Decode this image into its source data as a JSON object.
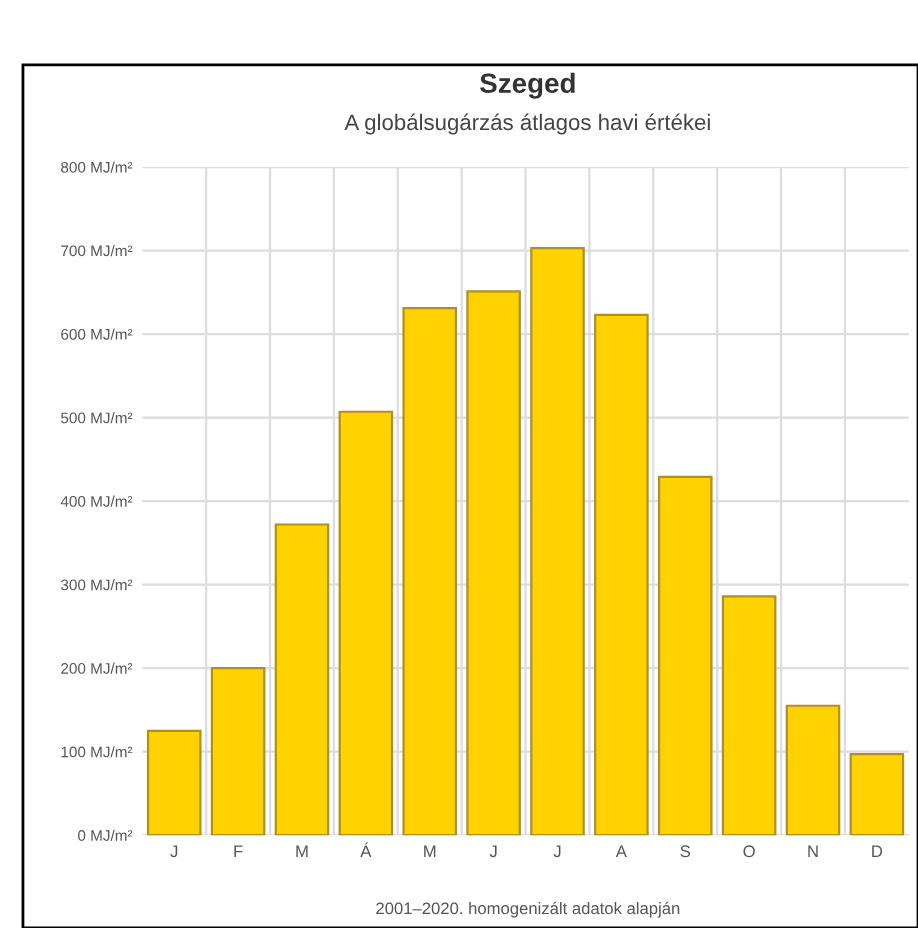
{
  "chart_data": {
    "type": "bar",
    "title": "Szeged",
    "subtitle": "A globálsugárzás átlagos havi értékei",
    "categories": [
      "J",
      "F",
      "M",
      "Á",
      "M",
      "J",
      "J",
      "A",
      "S",
      "O",
      "N",
      "D"
    ],
    "values": [
      125,
      200,
      372,
      507,
      631,
      651,
      703,
      623,
      429,
      286,
      155,
      97
    ],
    "color": "#ffd200",
    "ylim": [
      0,
      800
    ],
    "yticks": [
      {
        "value": 0,
        "label": "0 MJ/m²"
      },
      {
        "value": 100,
        "label": "100 MJ/m²"
      },
      {
        "value": 200,
        "label": "200 MJ/m²"
      },
      {
        "value": 300,
        "label": "300 MJ/m²"
      },
      {
        "value": 400,
        "label": "400 MJ/m²"
      },
      {
        "value": 500,
        "label": "500 MJ/m²"
      },
      {
        "value": 600,
        "label": "600 MJ/m²"
      },
      {
        "value": 700,
        "label": "700 MJ/m²"
      },
      {
        "value": 800,
        "label": "800 MJ/m²"
      }
    ],
    "grid": true,
    "annotations": [
      "2001–2020. homogenizált adatok alapján"
    ]
  }
}
